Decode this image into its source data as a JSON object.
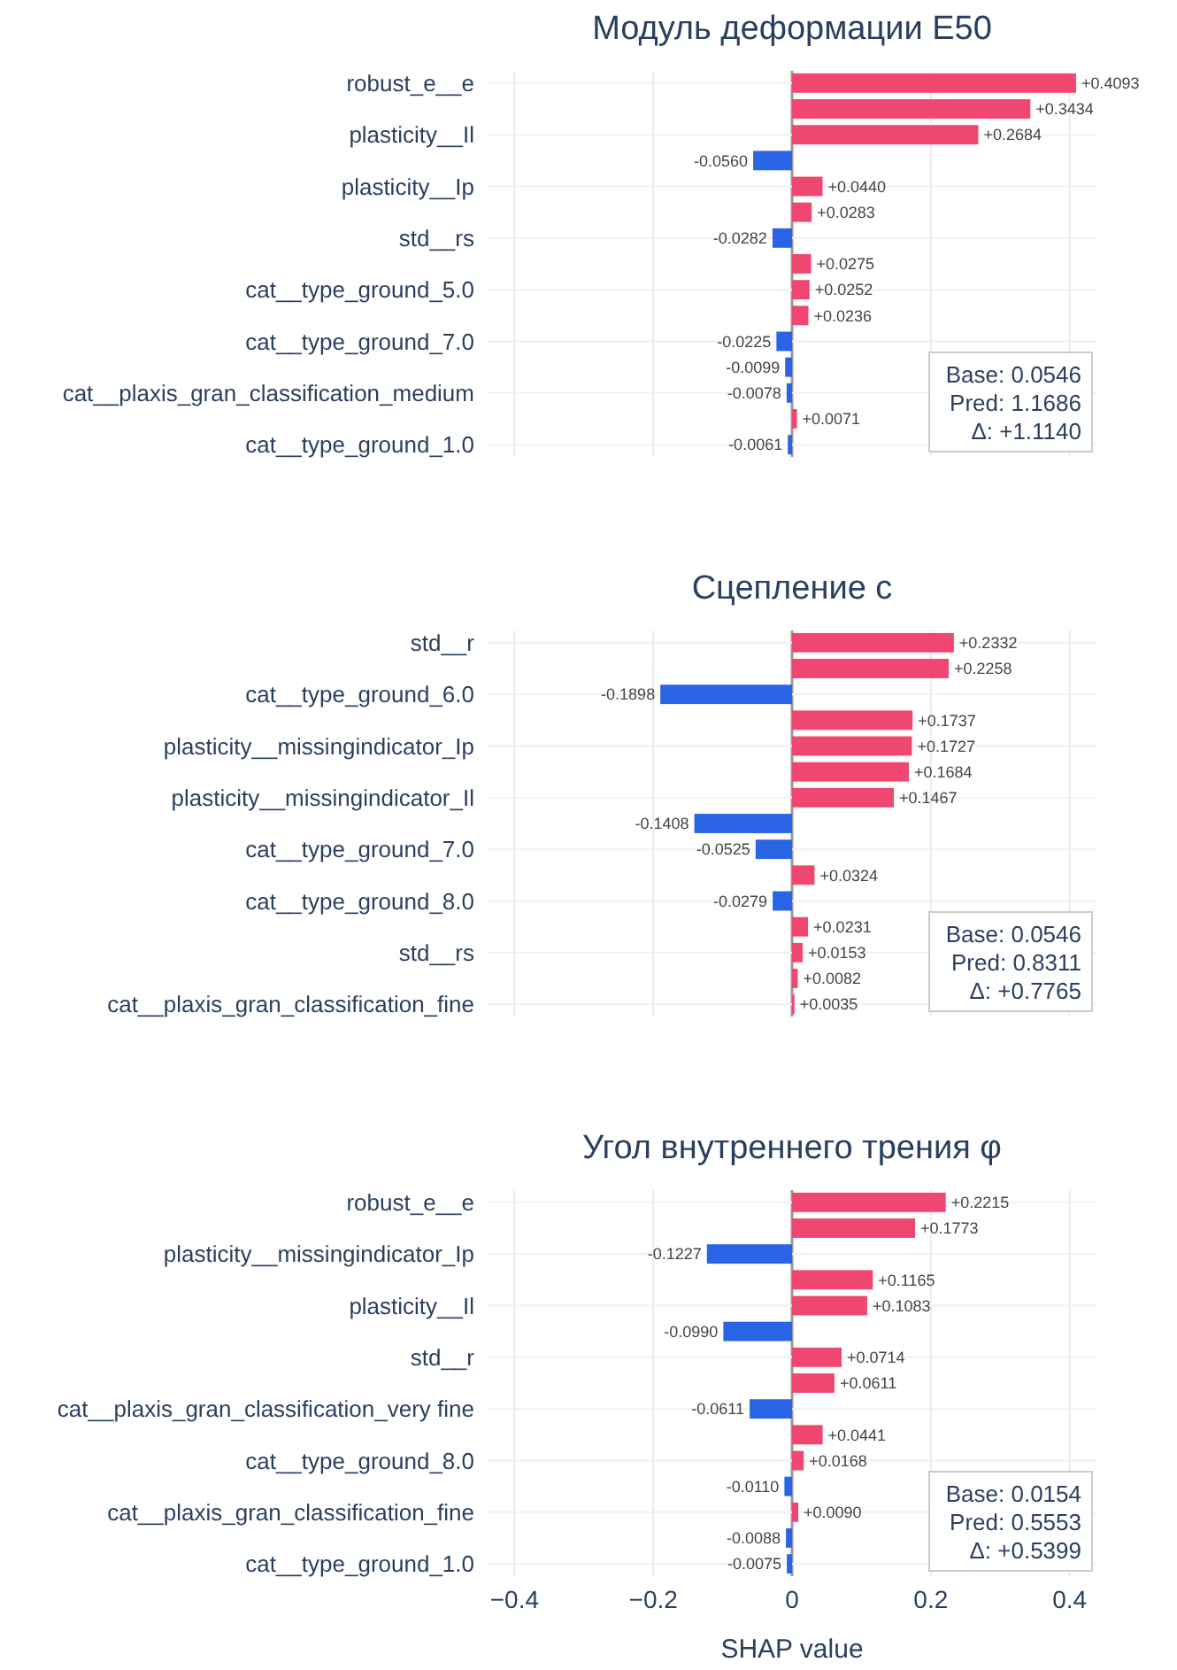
{
  "chart_data": [
    {
      "type": "bar",
      "orientation": "horizontal",
      "title": "Модуль деформации E50",
      "tick_labels": "y",
      "grid": true,
      "categories": [
        "robust_e__e",
        null,
        "plasticity__Il",
        null,
        "plasticity__Ip",
        null,
        "std__rs",
        null,
        "cat__type_ground_5.0",
        null,
        "cat__type_ground_7.0",
        null,
        "cat__plaxis_gran_classification_medium",
        null,
        "cat__type_ground_1.0"
      ],
      "values": [
        0.4093,
        0.3434,
        0.2684,
        -0.056,
        0.044,
        0.0283,
        -0.0282,
        0.0275,
        0.0252,
        0.0236,
        -0.0225,
        -0.0099,
        -0.0078,
        0.0071,
        -0.0061
      ],
      "value_labels": [
        "+0.4093",
        "+0.3434",
        "+0.2684",
        "-0.0560",
        "+0.0440",
        "+0.0283",
        "-0.0282",
        "+0.0275",
        "+0.0252",
        "+0.0236",
        "-0.0225",
        "-0.0099",
        "-0.0078",
        "+0.0071",
        "-0.0061"
      ],
      "colors": [
        "#ef476f",
        "#ef476f",
        "#ef476f",
        "#2a64e6",
        "#ef476f",
        "#ef476f",
        "#2a64e6",
        "#ef476f",
        "#ef476f",
        "#ef476f",
        "#2a64e6",
        "#2a64e6",
        "#2a64e6",
        "#ef476f",
        "#2a64e6"
      ],
      "xlim": [
        -0.44,
        0.44
      ],
      "xticks": [
        {
          "value": -0.4,
          "label": null
        },
        {
          "value": -0.2,
          "label": null
        },
        {
          "value": 0,
          "label": null
        },
        {
          "value": 0.2,
          "label": null
        },
        {
          "value": 0.4,
          "label": null
        }
      ],
      "annotations": [
        "Base: 0.0546\nPred: 1.1686\nΔ: +1.1140"
      ]
    },
    {
      "type": "bar",
      "orientation": "horizontal",
      "title": "Сцепление c",
      "tick_labels": "y",
      "grid": true,
      "categories": [
        "std__r",
        null,
        "cat__type_ground_6.0",
        null,
        "plasticity__missingindicator_Ip",
        null,
        "plasticity__missingindicator_Il",
        null,
        "cat__type_ground_7.0",
        null,
        "cat__type_ground_8.0",
        null,
        "std__rs",
        null,
        "cat__plaxis_gran_classification_fine"
      ],
      "values": [
        0.2332,
        0.2258,
        -0.1898,
        0.1737,
        0.1727,
        0.1684,
        0.1467,
        -0.1408,
        -0.0525,
        0.0324,
        -0.0279,
        0.0231,
        0.0153,
        0.0082,
        0.0035
      ],
      "value_labels": [
        "+0.2332",
        "+0.2258",
        "-0.1898",
        "+0.1737",
        "+0.1727",
        "+0.1684",
        "+0.1467",
        "-0.1408",
        "-0.0525",
        "+0.0324",
        "-0.0279",
        "+0.0231",
        "+0.0153",
        "+0.0082",
        "+0.0035"
      ],
      "colors": [
        "#ef476f",
        "#ef476f",
        "#2a64e6",
        "#ef476f",
        "#ef476f",
        "#ef476f",
        "#ef476f",
        "#2a64e6",
        "#2a64e6",
        "#ef476f",
        "#2a64e6",
        "#ef476f",
        "#ef476f",
        "#ef476f",
        "#ef476f"
      ],
      "xlim": [
        -0.44,
        0.44
      ],
      "xticks": [
        {
          "value": -0.4,
          "label": null
        },
        {
          "value": -0.2,
          "label": null
        },
        {
          "value": 0,
          "label": null
        },
        {
          "value": 0.2,
          "label": null
        },
        {
          "value": 0.4,
          "label": null
        }
      ],
      "annotations": [
        "Base: 0.0546\nPred: 0.8311\nΔ: +0.7765"
      ]
    },
    {
      "type": "bar",
      "orientation": "horizontal",
      "title": "Угол внутреннего трения φ",
      "xlabel": "SHAP value",
      "grid": true,
      "categories": [
        "robust_e__e",
        null,
        "plasticity__missingindicator_Ip",
        null,
        "plasticity__Il",
        null,
        "std__r",
        null,
        "cat__plaxis_gran_classification_very fine",
        null,
        "cat__type_ground_8.0",
        null,
        "cat__plaxis_gran_classification_fine",
        null,
        "cat__type_ground_1.0"
      ],
      "values": [
        0.2215,
        0.1773,
        -0.1227,
        0.1165,
        0.1083,
        -0.099,
        0.0714,
        0.0611,
        -0.0611,
        0.0441,
        0.0168,
        -0.011,
        0.009,
        -0.0088,
        -0.0075
      ],
      "value_labels": [
        "+0.2215",
        "+0.1773",
        "-0.1227",
        "+0.1165",
        "+0.1083",
        "-0.0990",
        "+0.0714",
        "+0.0611",
        "-0.0611",
        "+0.0441",
        "+0.0168",
        "-0.0110",
        "+0.0090",
        "-0.0088",
        "-0.0075"
      ],
      "colors": [
        "#ef476f",
        "#ef476f",
        "#2a64e6",
        "#ef476f",
        "#ef476f",
        "#2a64e6",
        "#ef476f",
        "#ef476f",
        "#2a64e6",
        "#ef476f",
        "#ef476f",
        "#2a64e6",
        "#ef476f",
        "#2a64e6",
        "#2a64e6"
      ],
      "xlim": [
        -0.44,
        0.44
      ],
      "xticks": [
        {
          "value": -0.4,
          "label": "−0.4"
        },
        {
          "value": -0.2,
          "label": "−0.2"
        },
        0,
        0.2,
        0.4
      ],
      "annotations": [
        "Base: 0.0154\nPred: 0.5553\nΔ: +0.5399"
      ]
    }
  ]
}
